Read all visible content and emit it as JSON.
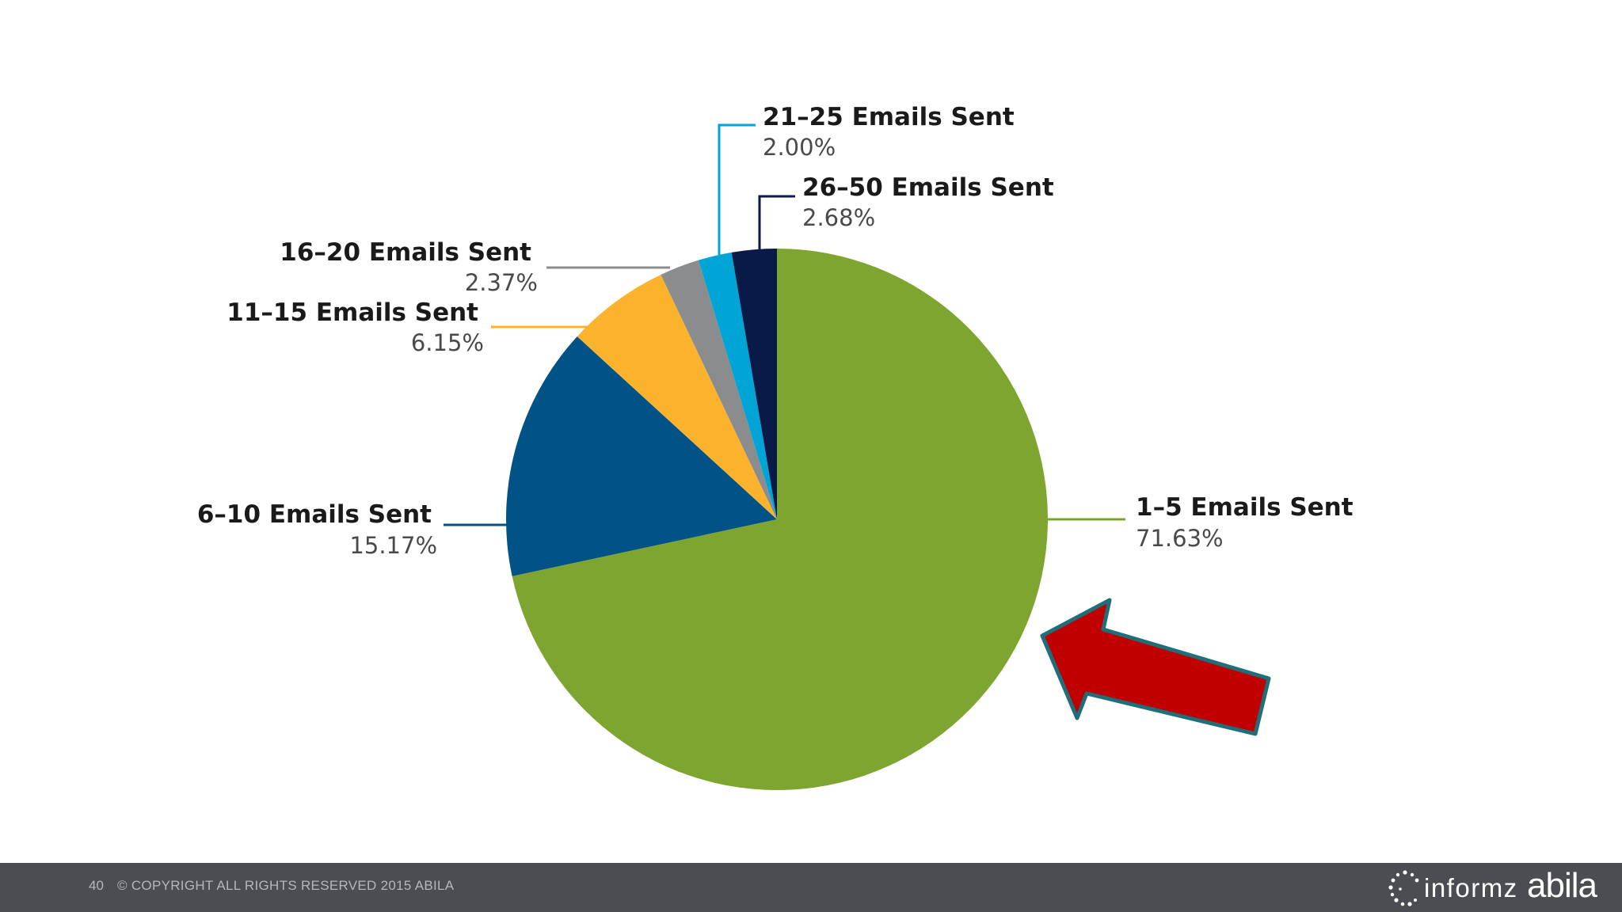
{
  "chart_data": {
    "type": "pie",
    "title": "",
    "slices": [
      {
        "label": "1–5 Emails Sent",
        "value": 71.63,
        "display": "71.63%",
        "color": "#7da52f"
      },
      {
        "label": "6–10 Emails Sent",
        "value": 15.17,
        "display": "15.17%",
        "color": "#005287"
      },
      {
        "label": "11–15 Emails Sent",
        "value": 6.15,
        "display": "6.15%",
        "color": "#fbb22d"
      },
      {
        "label": "16–20 Emails Sent",
        "value": 2.37,
        "display": "2.37%",
        "color": "#8b8c8e"
      },
      {
        "label": "21–25 Emails Sent",
        "value": 2.0,
        "display": "2.00%",
        "color": "#00a5d6"
      },
      {
        "label": "26–50 Emails Sent",
        "value": 2.68,
        "display": "2.68%",
        "color": "#0a1a48"
      }
    ],
    "start_angle": "12 o'clock",
    "direction": "clockwise",
    "legend": "none (labels with leader lines)"
  },
  "annotation": {
    "arrow_color": "#c00000",
    "arrow_outline": "#1f6e78",
    "points_to": "1–5 Emails Sent"
  },
  "footer": {
    "page_number": "40",
    "copyright": "© COPYRIGHT ALL RIGHTS RESERVED 2015 ABILA",
    "logo_informz": "informz",
    "logo_abila": "abila"
  }
}
